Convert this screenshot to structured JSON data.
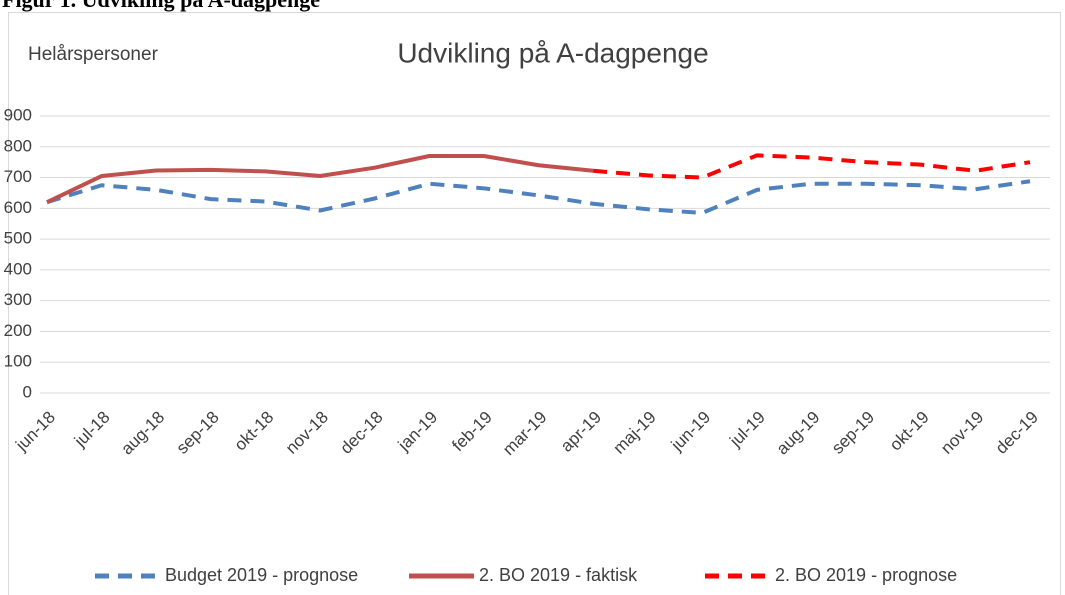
{
  "caption": "Figur 1. Udvikling på A-dagpenge",
  "chart_data": {
    "type": "line",
    "title": "Udvikling på A-dagpenge",
    "y_label": "Helårspersoner",
    "categories": [
      "jun-18",
      "jul-18",
      "aug-18",
      "sep-18",
      "okt-18",
      "nov-18",
      "dec-18",
      "jan-19",
      "feb-19",
      "mar-19",
      "apr-19",
      "maj-19",
      "jun-19",
      "jul-19",
      "aug-19",
      "sep-19",
      "okt-19",
      "nov-19",
      "dec-19"
    ],
    "series": [
      {
        "name": "Budget 2019 - prognose",
        "color": "#4f81bd",
        "dash": true,
        "values": [
          620,
          675,
          660,
          630,
          622,
          593,
          632,
          680,
          665,
          642,
          615,
          597,
          585,
          660,
          680,
          680,
          675,
          662,
          688
        ]
      },
      {
        "name": "2. BO 2019 - faktisk",
        "color": "#c0504d",
        "dash": false,
        "values": [
          620,
          705,
          723,
          725,
          720,
          705,
          732,
          770,
          770,
          740,
          722,
          null,
          null,
          null,
          null,
          null,
          null,
          null,
          null
        ]
      },
      {
        "name": "2. BO 2019 - prognose",
        "color": "#ff0000",
        "dash": true,
        "values": [
          null,
          null,
          null,
          null,
          null,
          null,
          null,
          null,
          null,
          null,
          722,
          707,
          700,
          772,
          765,
          750,
          742,
          722,
          750
        ]
      }
    ],
    "ylim": [
      0,
      900
    ],
    "yticks": [
      0,
      100,
      200,
      300,
      400,
      500,
      600,
      700,
      800,
      900
    ],
    "grid": true,
    "legend": "bottom"
  }
}
